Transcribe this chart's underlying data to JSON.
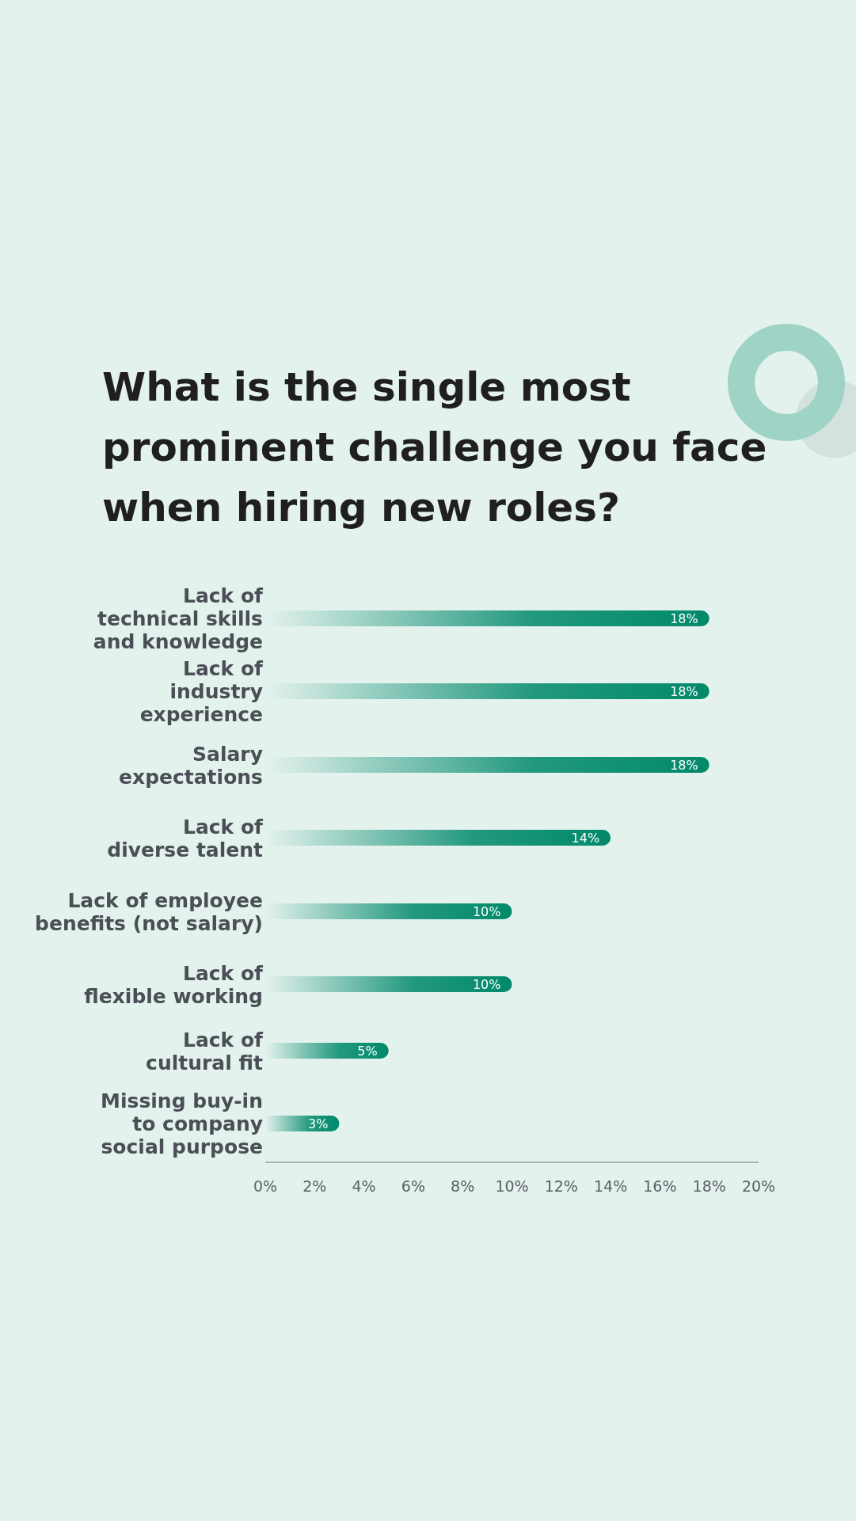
{
  "chart_data": {
    "type": "bar",
    "orientation": "horizontal",
    "title": "What is the single most\nprominent challenge you face\nwhen hiring new roles?",
    "categories": [
      "Lack of\ntechnical skills\nand knowledge",
      "Lack of\nindustry\nexperience",
      "Salary\nexpectations",
      "Lack of\ndiverse talent",
      "Lack of employee\nbenefits (not salary)",
      "Lack of\nflexible working",
      "Lack of\ncultural fit",
      "Missing buy-in\nto company\nsocial purpose"
    ],
    "values": [
      18,
      18,
      18,
      14,
      10,
      10,
      5,
      3
    ],
    "value_labels": [
      "18%",
      "18%",
      "18%",
      "14%",
      "10%",
      "10%",
      "5%",
      "3%"
    ],
    "color": "#00896a",
    "xlim": [
      0,
      20
    ],
    "xticks": [
      {
        "value": 0,
        "label": "0%"
      },
      {
        "value": 2,
        "label": "2%"
      },
      {
        "value": 4,
        "label": "4%"
      },
      {
        "value": 6,
        "label": "6%"
      },
      {
        "value": 8,
        "label": "8%"
      },
      {
        "value": 10,
        "label": "10%"
      },
      {
        "value": 12,
        "label": "12%"
      },
      {
        "value": 14,
        "label": "14%"
      },
      {
        "value": 16,
        "label": "16%"
      },
      {
        "value": 18,
        "label": "18%"
      },
      {
        "value": 20,
        "label": "20%"
      }
    ],
    "grid": false
  }
}
